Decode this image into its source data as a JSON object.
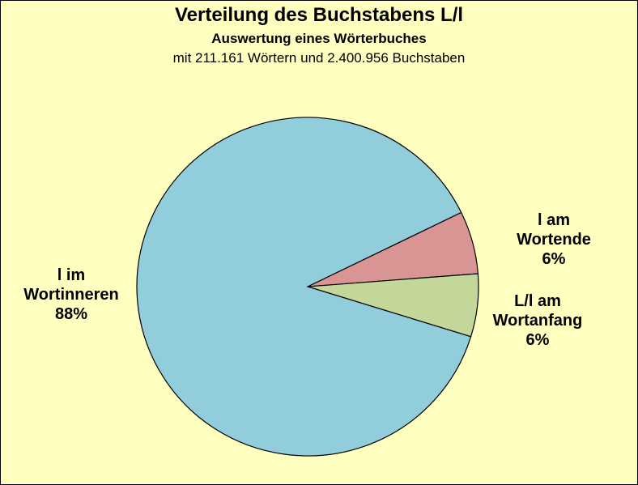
{
  "chart_data": {
    "type": "pie",
    "title": "Verteilung des Buchstabens L/l",
    "subtitle": "Auswertung eines Wörterbuches",
    "subtitle2": "mit 211.161 Wörtern und 2.400.956 Buchstaben",
    "slices": [
      {
        "label_lines": [
          "l am",
          "Wortende",
          "6%"
        ],
        "value": 6,
        "color": "#d99594"
      },
      {
        "label_lines": [
          "L/l am",
          "Wortanfang",
          "6%"
        ],
        "value": 6,
        "color": "#c4d79b"
      },
      {
        "label_lines": [
          "l im",
          "Wortinneren",
          "88%"
        ],
        "value": 88,
        "color": "#92cddc"
      }
    ]
  }
}
